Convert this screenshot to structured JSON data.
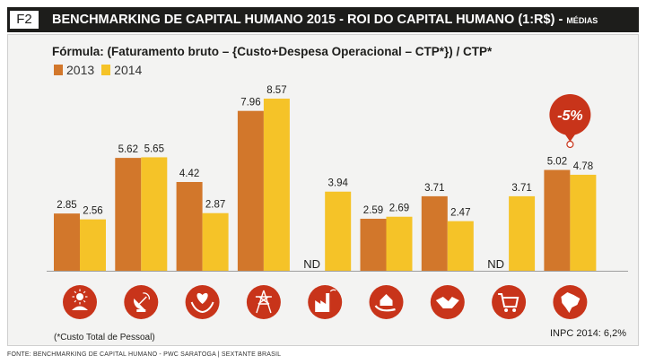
{
  "header": {
    "tag": "F2",
    "title": "BENCHMARKING DE CAPITAL HUMANO 2015 - ROI DO CAPITAL HUMANO (1:R$) - ",
    "title_suffix": "MÉDIAS"
  },
  "formula": "Fórmula: (Faturamento bruto – {Custo+Despesa Operacional – CTP*}) / CTP*",
  "footnote": "(*Custo Total de Pessoal)",
  "inpc": "INPC 2014: 6,2%",
  "source": "FONTE: BENCHMARKING DE CAPITAL HUMANO - PWC SARATOGA | SEXTANTE BRASIL",
  "badge": "-5%",
  "colors": {
    "c2013": "#d2772b",
    "c2014": "#f5c328",
    "icon": "#c8341a",
    "badge": "#c8341a"
  },
  "icons": [
    "agribusiness-icon",
    "telecom-icon",
    "health-icon",
    "energy-icon",
    "industry-icon",
    "financial-services-icon",
    "services-icon",
    "retail-icon",
    "brazil-icon"
  ],
  "chart_data": {
    "type": "bar",
    "categories": [
      "",
      "",
      "",
      "",
      "",
      "",
      "",
      "",
      ""
    ],
    "series": [
      {
        "name": "2013",
        "values": [
          2.85,
          5.62,
          4.42,
          7.96,
          null,
          2.59,
          3.71,
          null,
          5.02
        ],
        "labels": [
          "2.85",
          "5.62",
          "4.42",
          "7.96",
          "ND",
          "2.59",
          "3.71",
          "ND",
          "5.02"
        ]
      },
      {
        "name": "2014",
        "values": [
          2.56,
          5.65,
          2.87,
          8.57,
          3.94,
          2.69,
          2.47,
          3.71,
          4.78
        ],
        "labels": [
          "2.56",
          "5.65",
          "2.87",
          "8.57",
          "3.94",
          "2.69",
          "2.47",
          "3.71",
          "4.78"
        ]
      }
    ],
    "missing_label": "ND",
    "annotation": "-5%",
    "ylim": [
      0,
      9.5
    ],
    "grid": false,
    "legend": "top-left"
  }
}
